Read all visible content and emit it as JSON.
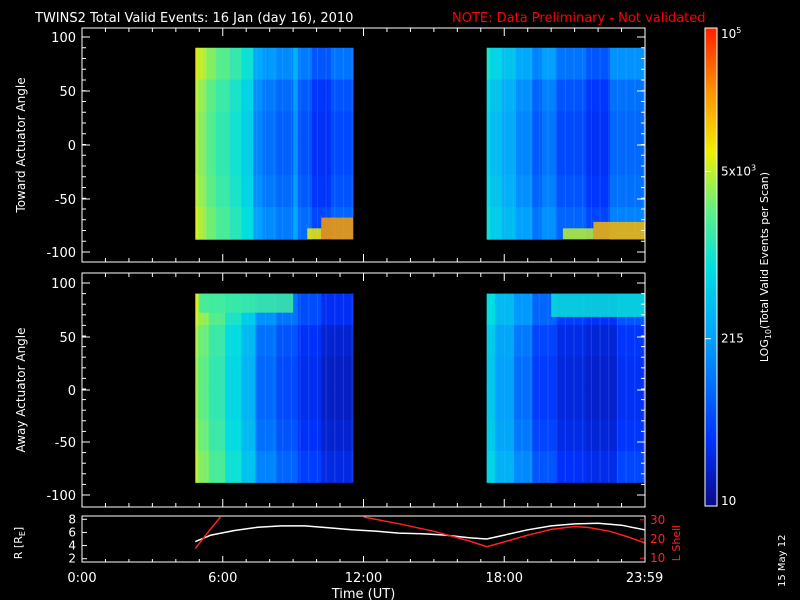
{
  "header": {
    "title": "TWINS2  Total Valid Events: 16 Jan (day  16), 2010",
    "note": "NOTE: Data Preliminary - Not validated"
  },
  "footer": {
    "date_stamp": "15 May 12"
  },
  "colors": {
    "background": "#000000",
    "axes": "#ffffff",
    "note": "#ff0000",
    "r_line": "#ffffff",
    "lshell_line": "#ff2020",
    "colormap": [
      "#0a0a8a",
      "#0033ff",
      "#00a0ff",
      "#00e0e0",
      "#60f080",
      "#f0f000",
      "#ff9000",
      "#ff2000"
    ]
  },
  "chart_data": [
    {
      "id": "toward",
      "type": "heatmap",
      "ylabel": "Toward Actuator Angle",
      "yticks": [
        100,
        50,
        0,
        -50,
        -100
      ],
      "ylim": [
        -110,
        110
      ],
      "xlim": [
        0,
        24
      ],
      "data_extent_deg": [
        -88,
        90
      ],
      "blocks": [
        {
          "t_start": 4.83,
          "t_end": 11.55,
          "columns": [
            {
              "t0": 4.83,
              "t1": 4.95,
              "level": 0.72
            },
            {
              "t0": 4.95,
              "t1": 5.3,
              "level": 0.66
            },
            {
              "t0": 5.3,
              "t1": 5.7,
              "level": 0.6
            },
            {
              "t0": 5.7,
              "t1": 6.3,
              "level": 0.55
            },
            {
              "t0": 6.3,
              "t1": 6.8,
              "level": 0.5
            },
            {
              "t0": 6.8,
              "t1": 7.3,
              "level": 0.44
            },
            {
              "t0": 7.3,
              "t1": 7.7,
              "level": 0.3
            },
            {
              "t0": 7.7,
              "t1": 8.3,
              "level": 0.27
            },
            {
              "t0": 8.3,
              "t1": 9.0,
              "level": 0.25
            },
            {
              "t0": 9.0,
              "t1": 9.2,
              "level": 0.32
            },
            {
              "t0": 9.2,
              "t1": 9.8,
              "level": 0.23
            },
            {
              "t0": 9.8,
              "t1": 10.6,
              "level": 0.18
            },
            {
              "t0": 10.6,
              "t1": 11.55,
              "level": 0.22
            }
          ],
          "patches": [
            {
              "t0": 10.2,
              "t1": 11.55,
              "a0": -88,
              "a1": -68,
              "level": 0.84
            },
            {
              "t0": 9.6,
              "t1": 10.2,
              "a0": -88,
              "a1": -78,
              "level": 0.72
            }
          ]
        },
        {
          "t_start": 17.25,
          "t_end": 23.98,
          "columns": [
            {
              "t0": 17.25,
              "t1": 17.4,
              "level": 0.46
            },
            {
              "t0": 17.4,
              "t1": 17.9,
              "level": 0.4
            },
            {
              "t0": 17.9,
              "t1": 18.5,
              "level": 0.36
            },
            {
              "t0": 18.5,
              "t1": 19.2,
              "level": 0.3
            },
            {
              "t0": 19.2,
              "t1": 19.6,
              "level": 0.24
            },
            {
              "t0": 19.6,
              "t1": 20.2,
              "level": 0.28
            },
            {
              "t0": 20.2,
              "t1": 21.5,
              "level": 0.22
            },
            {
              "t0": 21.5,
              "t1": 22.5,
              "level": 0.18
            },
            {
              "t0": 22.5,
              "t1": 23.98,
              "level": 0.26
            }
          ],
          "patches": [
            {
              "t0": 21.8,
              "t1": 23.98,
              "a0": -88,
              "a1": -72,
              "level": 0.8
            },
            {
              "t0": 20.5,
              "t1": 21.8,
              "a0": -88,
              "a1": -78,
              "level": 0.66
            }
          ]
        }
      ]
    },
    {
      "id": "away",
      "type": "heatmap",
      "ylabel": "Away Actuator Angle",
      "yticks": [
        100,
        50,
        0,
        -50,
        -100
      ],
      "ylim": [
        -110,
        110
      ],
      "xlim": [
        0,
        24
      ],
      "data_extent_deg": [
        -88,
        90
      ],
      "blocks": [
        {
          "t_start": 4.83,
          "t_end": 11.55,
          "columns": [
            {
              "t0": 4.83,
              "t1": 4.95,
              "level": 0.7
            },
            {
              "t0": 4.95,
              "t1": 5.4,
              "level": 0.62
            },
            {
              "t0": 5.4,
              "t1": 6.1,
              "level": 0.55
            },
            {
              "t0": 6.1,
              "t1": 6.8,
              "level": 0.46
            },
            {
              "t0": 6.8,
              "t1": 7.4,
              "level": 0.38
            },
            {
              "t0": 7.4,
              "t1": 8.3,
              "level": 0.26
            },
            {
              "t0": 8.3,
              "t1": 9.2,
              "level": 0.22
            },
            {
              "t0": 9.2,
              "t1": 10.2,
              "level": 0.17
            },
            {
              "t0": 10.2,
              "t1": 11.55,
              "level": 0.12
            }
          ],
          "patches": [
            {
              "t0": 5.0,
              "t1": 9.0,
              "a0": 72,
              "a1": 90,
              "level": 0.52
            }
          ]
        },
        {
          "t_start": 17.25,
          "t_end": 23.98,
          "columns": [
            {
              "t0": 17.25,
              "t1": 17.6,
              "level": 0.42
            },
            {
              "t0": 17.6,
              "t1": 18.4,
              "level": 0.34
            },
            {
              "t0": 18.4,
              "t1": 19.2,
              "level": 0.27
            },
            {
              "t0": 19.2,
              "t1": 20.2,
              "level": 0.2
            },
            {
              "t0": 20.2,
              "t1": 21.5,
              "level": 0.15
            },
            {
              "t0": 21.5,
              "t1": 22.8,
              "level": 0.13
            },
            {
              "t0": 22.8,
              "t1": 23.98,
              "level": 0.18
            }
          ],
          "patches": [
            {
              "t0": 20.0,
              "t1": 23.98,
              "a0": 68,
              "a1": 90,
              "level": 0.44
            }
          ]
        }
      ]
    },
    {
      "id": "orbit",
      "type": "line",
      "xlabel": "Time (UT)",
      "xlim": [
        0,
        24
      ],
      "xtick_values": [
        0,
        6,
        12,
        18,
        23.983
      ],
      "xtick_labels": [
        "0:00",
        "6:00",
        "12:00",
        "18:00",
        "23:59"
      ],
      "left_axis": {
        "label": "R [R",
        "label_sub": "E",
        "label_end": "]",
        "ticks": [
          8,
          6,
          4,
          2
        ],
        "ylim": [
          1.5,
          8.5
        ]
      },
      "right_axis": {
        "label": "L Shell",
        "ticks": [
          30,
          20,
          10
        ],
        "ylim": [
          8,
          32
        ]
      },
      "series": [
        {
          "axis": "left",
          "color": "#ffffff",
          "x": [
            4.83,
            5.5,
            6.5,
            7.5,
            8.5,
            9.5,
            10.5,
            11.5,
            12.5,
            13.5,
            14.5,
            15.5,
            16.5,
            17.25,
            18.0,
            19.0,
            20.0,
            21.0,
            22.0,
            23.0,
            23.98
          ],
          "y": [
            4.6,
            5.6,
            6.3,
            6.8,
            7.0,
            7.0,
            6.7,
            6.4,
            6.2,
            5.9,
            5.8,
            5.6,
            5.2,
            5.0,
            5.6,
            6.4,
            7.0,
            7.3,
            7.4,
            7.1,
            6.4
          ]
        },
        {
          "axis": "right",
          "color": "#ff2020",
          "segments": [
            {
              "x": [
                4.83,
                5.4,
                5.9
              ],
              "y": [
                15.0,
                24.0,
                31.5
              ]
            },
            {
              "x": [
                12.0,
                13.5,
                15.0,
                16.5,
                17.25,
                18.0,
                19.0,
                20.0,
                21.0,
                21.6,
                22.5,
                23.3,
                23.98
              ],
              "y": [
                31.5,
                28.0,
                24.0,
                19.0,
                16.0,
                18.5,
                22.0,
                25.0,
                26.5,
                26.0,
                24.0,
                21.0,
                18.0
              ]
            }
          ]
        }
      ]
    }
  ],
  "colorbar": {
    "label": "LOG",
    "label_sub": "10",
    "label_rest": "(Total Valid Events per Scan)",
    "ticks": [
      {
        "frac": 1.0,
        "base": "10",
        "exp": "5",
        "mid": ""
      },
      {
        "frac": 0.7,
        "base": "5x10",
        "exp": "3",
        "mid": ""
      },
      {
        "frac": 0.35,
        "base": "215",
        "exp": "",
        "mid": ""
      },
      {
        "frac": 0.0,
        "base": "10",
        "exp": "",
        "mid": ""
      }
    ]
  }
}
